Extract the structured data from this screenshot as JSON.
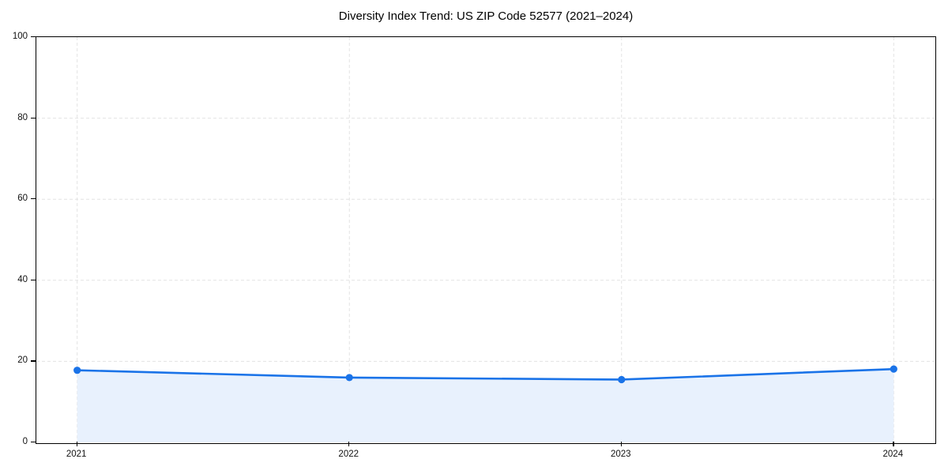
{
  "chart_data": {
    "type": "area",
    "title": "Diversity Index Trend: US ZIP Code 52577 (2021–2024)",
    "x": [
      2021,
      2022,
      2023,
      2024
    ],
    "x_tick_labels": [
      "2021",
      "2022",
      "2023",
      "2024"
    ],
    "series": [
      {
        "name": "Diversity Index",
        "values": [
          17.8,
          16.0,
          15.5,
          18.1
        ]
      }
    ],
    "ylim": [
      0,
      100
    ],
    "yticks": [
      0,
      20,
      40,
      60,
      80,
      100
    ],
    "ytick_labels": [
      "0",
      "20",
      "40",
      "60",
      "80",
      "100"
    ],
    "x_margin_fraction": 0.05,
    "grid": "dashed",
    "legend_position": "none",
    "colors": {
      "line": "#1a73e8",
      "marker": "#1a73e8",
      "fill": "#e8f1fd",
      "gridline": "#e3e3e3",
      "spine": "#000000",
      "text": "#000000"
    }
  }
}
